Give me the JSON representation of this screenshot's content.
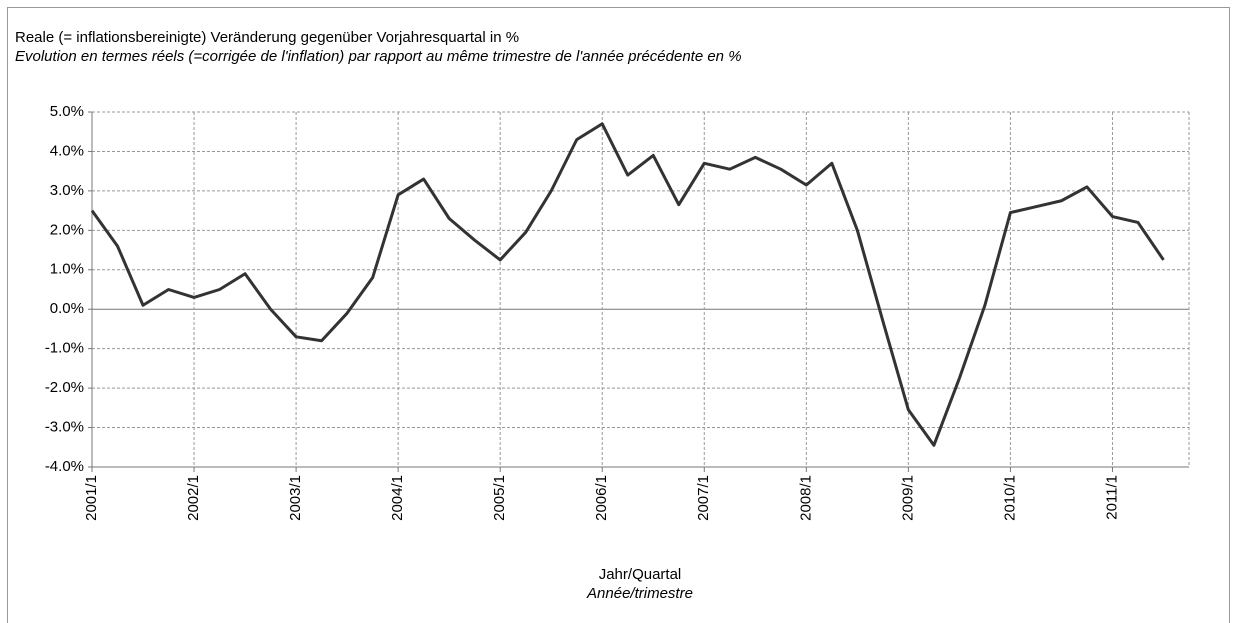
{
  "chart_data": {
    "type": "line",
    "title": "Reale (= inflationsbereinigte) Veränderung gegenüber Vorjahresquartal in %",
    "subtitle": "Evolution en termes réels (=corrigée de l'inflation)  par rapport au même trimestre de l'année précédente en %",
    "x_label": "Jahr/Quartal",
    "x_label_fr": "Année/trimestre",
    "categories": [
      "2001/1",
      null,
      null,
      null,
      "2002/1",
      null,
      null,
      null,
      "2003/1",
      null,
      null,
      null,
      "2004/1",
      null,
      null,
      null,
      "2005/1",
      null,
      null,
      null,
      "2006/1",
      null,
      null,
      null,
      "2007/1",
      null,
      null,
      null,
      "2008/1",
      null,
      null,
      null,
      "2009/1",
      null,
      null,
      null,
      "2010/1",
      null,
      null,
      null,
      "2011/1",
      null,
      null
    ],
    "series": [
      {
        "color": "#333333",
        "values": [
          2.5,
          1.6,
          0.1,
          0.5,
          0.3,
          0.5,
          0.9,
          0.0,
          -0.7,
          -0.8,
          -0.1,
          0.8,
          2.9,
          3.3,
          2.3,
          1.75,
          1.25,
          1.95,
          3.0,
          4.3,
          4.7,
          3.4,
          3.9,
          2.65,
          3.7,
          3.55,
          3.85,
          3.55,
          3.15,
          3.7,
          2.0,
          -0.3,
          -2.55,
          -3.45,
          -1.75,
          0.1,
          2.45,
          2.6,
          2.75,
          3.1,
          2.35,
          2.2,
          1.25
        ]
      }
    ],
    "ylim": [
      -4,
      5
    ],
    "yticks": [
      {
        "value": -4,
        "label": "-4.0%"
      },
      {
        "value": -3,
        "label": "-3.0%"
      },
      {
        "value": -2,
        "label": "-2.0%"
      },
      {
        "value": -1,
        "label": "-1.0%"
      },
      {
        "value": 0,
        "label": "0.0%"
      },
      {
        "value": 1,
        "label": "1.0%"
      },
      {
        "value": 2,
        "label": "2.0%"
      },
      {
        "value": 3,
        "label": "3.0%"
      },
      {
        "value": 4,
        "label": "4.0%"
      },
      {
        "value": 5,
        "label": "5.0%"
      }
    ],
    "grid": true
  }
}
